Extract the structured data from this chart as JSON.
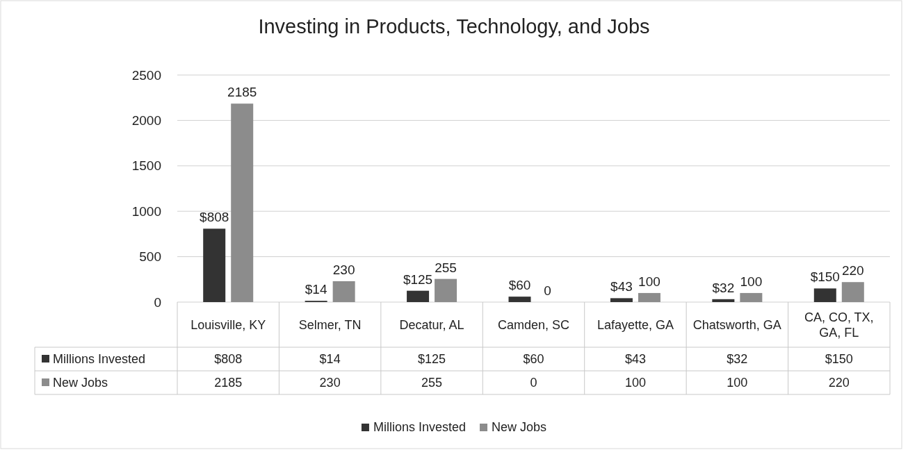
{
  "chart_data": {
    "type": "bar",
    "title": "Investing in Products, Technology, and Jobs",
    "categories": [
      "Louisville, KY",
      "Selmer, TN",
      "Decatur, AL",
      "Camden, SC",
      "Lafayette, GA",
      "Chatsworth, GA",
      "CA, CO, TX, GA, FL"
    ],
    "series": [
      {
        "name": "Millions Invested",
        "color": "#333333",
        "values": [
          808,
          14,
          125,
          60,
          43,
          32,
          150
        ],
        "value_labels": [
          "$808",
          "$14",
          "$125",
          "$60",
          "$43",
          "$32",
          "$150"
        ]
      },
      {
        "name": "New Jobs",
        "color": "#8c8c8c",
        "values": [
          2185,
          230,
          255,
          0,
          100,
          100,
          220
        ],
        "value_labels": [
          "2185",
          "230",
          "255",
          "0",
          "100",
          "100",
          "220"
        ]
      }
    ],
    "ylim": [
      0,
      2500
    ],
    "yticks": [
      0,
      500,
      1000,
      1500,
      2000,
      2500
    ],
    "grid": "y",
    "legend": "bottom"
  }
}
